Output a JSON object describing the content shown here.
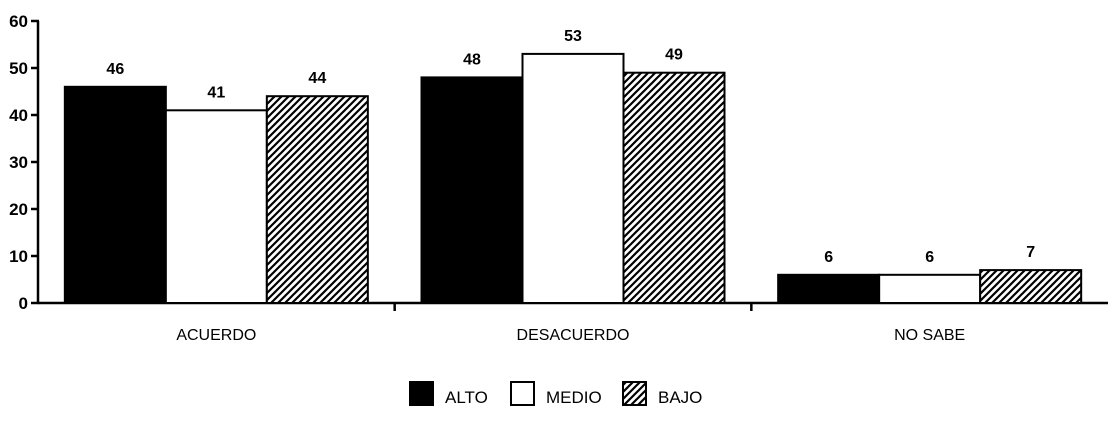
{
  "chart_data": {
    "type": "bar",
    "categories": [
      "ACUERDO",
      "DESACUERDO",
      "NO SABE"
    ],
    "series": [
      {
        "name": "ALTO",
        "values": [
          46,
          48,
          6
        ],
        "fill": "solid",
        "color": "#000000"
      },
      {
        "name": "MEDIO",
        "values": [
          41,
          53,
          6
        ],
        "fill": "empty",
        "color": "#ffffff"
      },
      {
        "name": "BAJO",
        "values": [
          44,
          49,
          7
        ],
        "fill": "hatched",
        "color": "#000000"
      }
    ],
    "ylim": [
      0,
      60
    ],
    "yticks": [
      0,
      10,
      20,
      30,
      40,
      50,
      60
    ],
    "legend_position": "bottom-center",
    "grid": false
  }
}
